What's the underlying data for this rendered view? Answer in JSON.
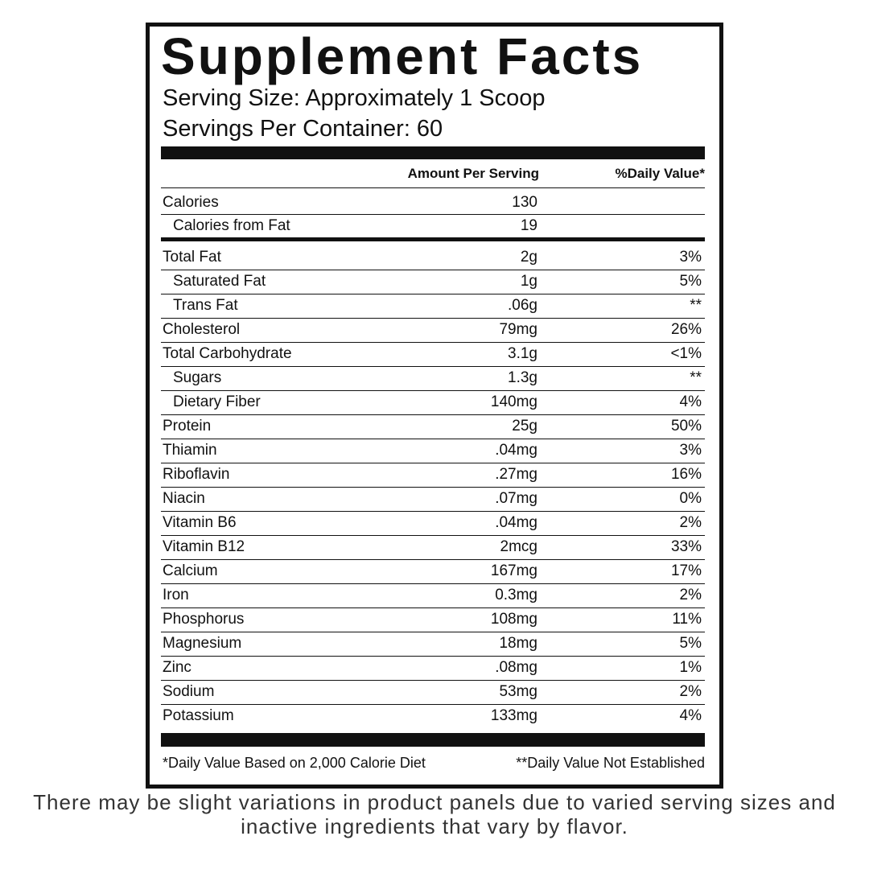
{
  "title": "Supplement Facts",
  "serving_size": "Serving Size: Approximately 1 Scoop",
  "servings_per_container": "Servings Per Container: 60",
  "header": {
    "amount": "Amount Per Serving",
    "dv": "%Daily Value*"
  },
  "calories": [
    {
      "name": "Calories",
      "amount": "130"
    },
    {
      "name": "Calories from Fat",
      "amount": "19",
      "indent": true
    }
  ],
  "nutrients": [
    {
      "name": "Total Fat",
      "amount": "2g",
      "dv": "3%"
    },
    {
      "name": "Saturated Fat",
      "amount": "1g",
      "dv": "5%",
      "indent": true
    },
    {
      "name": "Trans Fat",
      "amount": ".06g",
      "dv": "**",
      "indent": true
    },
    {
      "name": "Cholesterol",
      "amount": "79mg",
      "dv": "26%"
    },
    {
      "name": "Total Carbohydrate",
      "amount": "3.1g",
      "dv": "<1%"
    },
    {
      "name": "Sugars",
      "amount": "1.3g",
      "dv": "**",
      "indent": true
    },
    {
      "name": "Dietary Fiber",
      "amount": "140mg",
      "dv": "4%",
      "indent": true
    },
    {
      "name": "Protein",
      "amount": "25g",
      "dv": "50%"
    },
    {
      "name": "Thiamin",
      "amount": ".04mg",
      "dv": "3%"
    },
    {
      "name": "Riboflavin",
      "amount": ".27mg",
      "dv": "16%"
    },
    {
      "name": "Niacin",
      "amount": ".07mg",
      "dv": "0%"
    },
    {
      "name": "Vitamin B6",
      "amount": ".04mg",
      "dv": "2%"
    },
    {
      "name": "Vitamin B12",
      "amount": "2mcg",
      "dv": "33%"
    },
    {
      "name": "Calcium",
      "amount": "167mg",
      "dv": "17%"
    },
    {
      "name": "Iron",
      "amount": "0.3mg",
      "dv": "2%"
    },
    {
      "name": "Phosphorus",
      "amount": "108mg",
      "dv": "11%"
    },
    {
      "name": "Magnesium",
      "amount": "18mg",
      "dv": "5%"
    },
    {
      "name": "Zinc",
      "amount": ".08mg",
      "dv": "1%"
    },
    {
      "name": "Sodium",
      "amount": "53mg",
      "dv": "2%"
    },
    {
      "name": "Potassium",
      "amount": "133mg",
      "dv": "4%"
    }
  ],
  "footnotes": {
    "left": "*Daily Value Based on 2,000 Calorie Diet",
    "right": "**Daily Value Not Established"
  },
  "disclaimer": "There may be slight variations in product panels due to varied serving sizes and inactive ingredients that vary by flavor."
}
